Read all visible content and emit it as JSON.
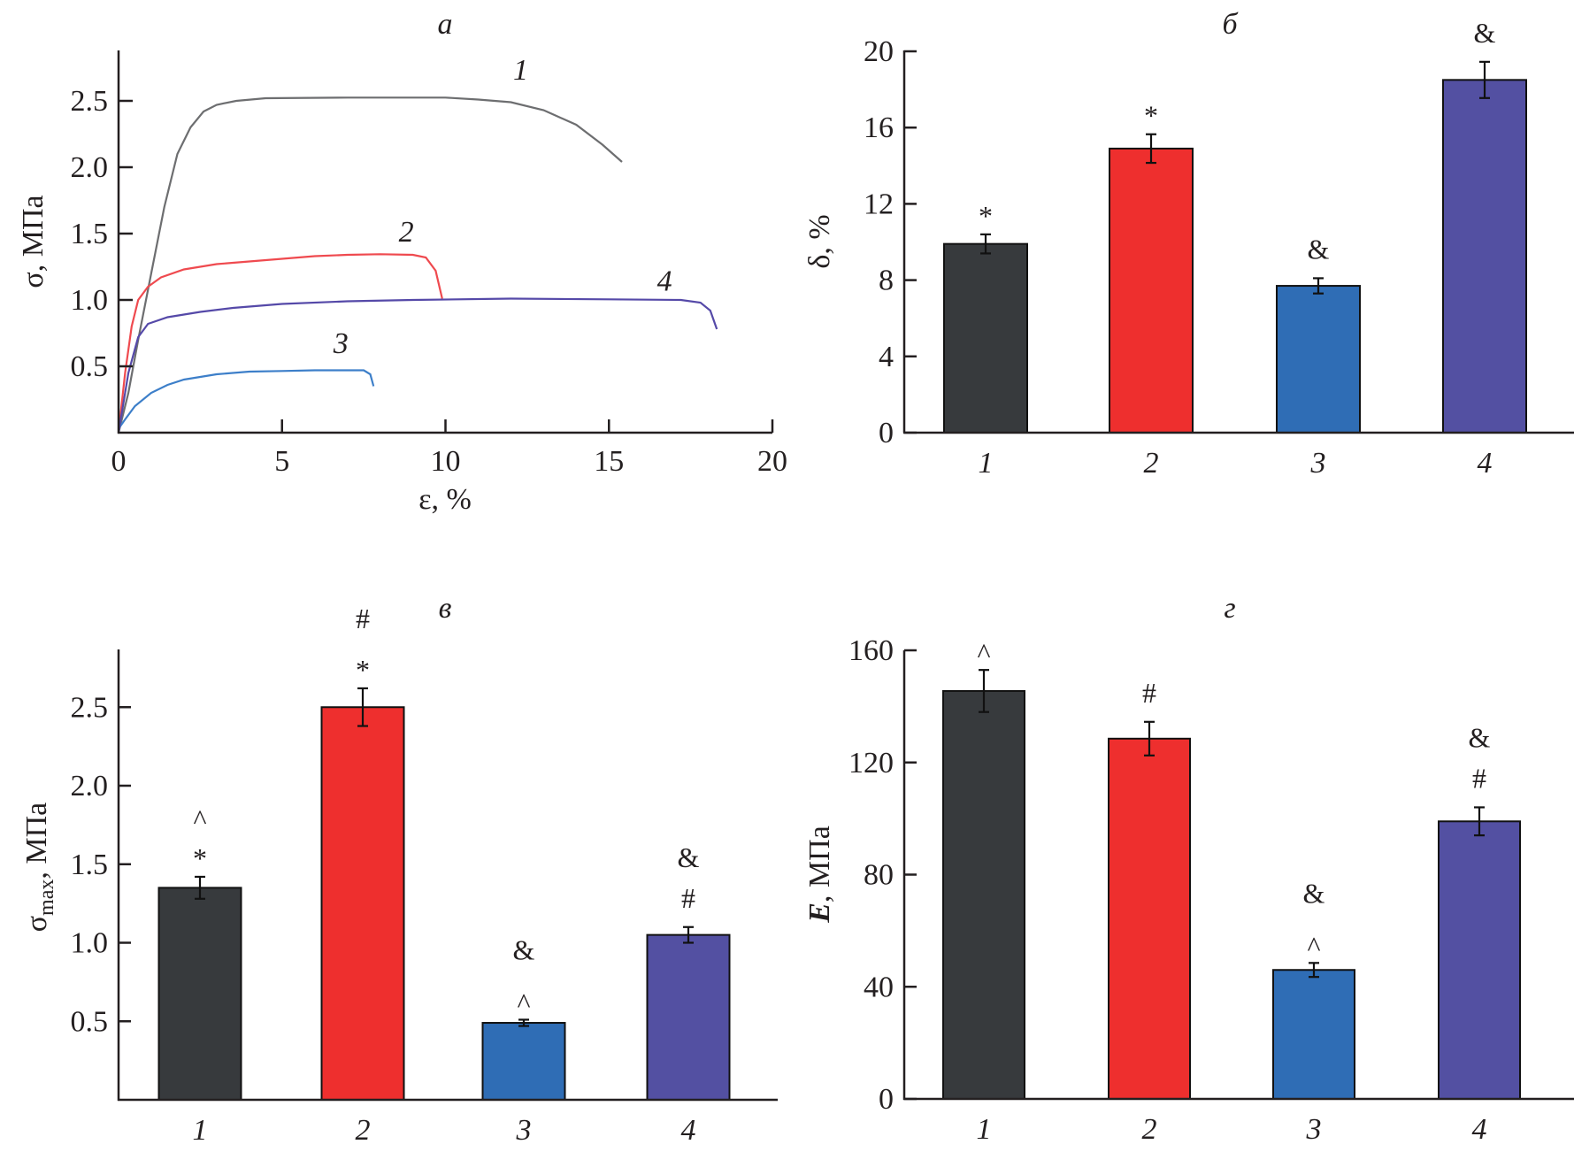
{
  "figure": {
    "panels": [
      "а",
      "б",
      "в",
      "г"
    ]
  },
  "chart_data": [
    {
      "id": "a",
      "type": "line",
      "panel_label": "а",
      "xlabel": "ε, %",
      "ylabel": "σ, МПа",
      "xlim": [
        0,
        20
      ],
      "ylim": [
        0,
        2.75
      ],
      "xticks": [
        0,
        5,
        10,
        15,
        20
      ],
      "xtick_labels": [
        "0",
        "5",
        "10",
        "15",
        "20"
      ],
      "yticks": [
        0.5,
        1.0,
        1.5,
        2.0,
        2.5
      ],
      "ytick_labels": [
        "0.5",
        "1.0",
        "1.5",
        "2.0",
        "2.5"
      ],
      "grid": false,
      "series": [
        {
          "name": "1",
          "color": "#6d6e70",
          "label_at": [
            12.3,
            2.66
          ],
          "points": [
            [
              0,
              0
            ],
            [
              0.3,
              0.3
            ],
            [
              0.6,
              0.7
            ],
            [
              1.0,
              1.2
            ],
            [
              1.4,
              1.7
            ],
            [
              1.8,
              2.1
            ],
            [
              2.2,
              2.3
            ],
            [
              2.6,
              2.42
            ],
            [
              3.0,
              2.47
            ],
            [
              3.6,
              2.5
            ],
            [
              4.5,
              2.52
            ],
            [
              7,
              2.525
            ],
            [
              10,
              2.525
            ],
            [
              11,
              2.51
            ],
            [
              12,
              2.49
            ],
            [
              13,
              2.43
            ],
            [
              14,
              2.32
            ],
            [
              14.8,
              2.17
            ],
            [
              15.4,
              2.04
            ]
          ]
        },
        {
          "name": "2",
          "color": "#ef4a4f",
          "label_at": [
            8.8,
            1.44
          ],
          "points": [
            [
              0,
              0
            ],
            [
              0.2,
              0.45
            ],
            [
              0.4,
              0.8
            ],
            [
              0.6,
              1.0
            ],
            [
              0.9,
              1.1
            ],
            [
              1.3,
              1.17
            ],
            [
              2,
              1.23
            ],
            [
              3,
              1.27
            ],
            [
              4,
              1.29
            ],
            [
              5,
              1.31
            ],
            [
              6,
              1.33
            ],
            [
              7,
              1.34
            ],
            [
              8,
              1.345
            ],
            [
              9,
              1.34
            ],
            [
              9.4,
              1.32
            ],
            [
              9.7,
              1.22
            ],
            [
              9.9,
              1.01
            ]
          ]
        },
        {
          "name": "3",
          "color": "#3d7fc9",
          "label_at": [
            6.8,
            0.6
          ],
          "points": [
            [
              0,
              0.03
            ],
            [
              0.2,
              0.1
            ],
            [
              0.5,
              0.2
            ],
            [
              1,
              0.3
            ],
            [
              1.5,
              0.36
            ],
            [
              2,
              0.4
            ],
            [
              3,
              0.44
            ],
            [
              4,
              0.46
            ],
            [
              5,
              0.465
            ],
            [
              6,
              0.47
            ],
            [
              7,
              0.47
            ],
            [
              7.5,
              0.47
            ],
            [
              7.7,
              0.44
            ],
            [
              7.8,
              0.35
            ]
          ]
        },
        {
          "name": "4",
          "color": "#5549a8",
          "label_at": [
            16.7,
            1.07
          ],
          "points": [
            [
              0,
              0
            ],
            [
              0.3,
              0.45
            ],
            [
              0.6,
              0.72
            ],
            [
              0.9,
              0.82
            ],
            [
              1.5,
              0.87
            ],
            [
              2.5,
              0.91
            ],
            [
              3.5,
              0.94
            ],
            [
              5,
              0.97
            ],
            [
              7,
              0.99
            ],
            [
              9,
              1.0
            ],
            [
              12,
              1.01
            ],
            [
              15,
              1.005
            ],
            [
              17.2,
              1.0
            ],
            [
              17.8,
              0.98
            ],
            [
              18.1,
              0.92
            ],
            [
              18.2,
              0.85
            ],
            [
              18.3,
              0.78
            ]
          ]
        }
      ]
    },
    {
      "id": "b",
      "type": "bar",
      "panel_label": "б",
      "ylabel": "δ, %",
      "categories": [
        "1",
        "2",
        "3",
        "4"
      ],
      "ylim": [
        0,
        20
      ],
      "yticks": [
        0,
        4,
        8,
        12,
        16,
        20
      ],
      "ytick_labels": [
        "0",
        "4",
        "8",
        "12",
        "16",
        "20"
      ],
      "values": [
        9.9,
        14.9,
        7.7,
        18.5
      ],
      "errors": [
        0.5,
        0.75,
        0.4,
        0.95
      ],
      "colors": [
        "#373a3d",
        "#ee2f2e",
        "#2f6db5",
        "#5350a2"
      ],
      "annotations": [
        [
          "*"
        ],
        [
          "*"
        ],
        [
          "&"
        ],
        [
          "&"
        ]
      ]
    },
    {
      "id": "v",
      "type": "bar",
      "panel_label": "в",
      "ylabel": "σmax, МПа",
      "ylabel_main": "σ",
      "ylabel_sub": "max",
      "ylabel_rest": ", МПа",
      "categories": [
        "1",
        "2",
        "3",
        "4"
      ],
      "ylim": [
        0,
        2.75
      ],
      "yticks": [
        0.5,
        1.0,
        1.5,
        2.0,
        2.5
      ],
      "ytick_labels": [
        "0.5",
        "1.0",
        "1.5",
        "2.0",
        "2.5"
      ],
      "values": [
        1.35,
        2.5,
        0.49,
        1.05
      ],
      "errors": [
        0.07,
        0.12,
        0.02,
        0.05
      ],
      "colors": [
        "#373a3d",
        "#ee2f2e",
        "#2f6db5",
        "#5350a2"
      ],
      "annotations": [
        [
          "*",
          "^"
        ],
        [
          "*",
          "#"
        ],
        [
          "^",
          "&"
        ],
        [
          "#",
          "&"
        ]
      ]
    },
    {
      "id": "g",
      "type": "bar",
      "panel_label": "г",
      "ylabel": "E, МПа",
      "ylabel_main": "E",
      "ylabel_rest": ", МПа",
      "categories": [
        "1",
        "2",
        "3",
        "4"
      ],
      "ylim": [
        0,
        160
      ],
      "yticks": [
        0,
        40,
        80,
        120,
        160
      ],
      "ytick_labels": [
        "0",
        "40",
        "80",
        "120",
        "160"
      ],
      "values": [
        145.5,
        128.5,
        46,
        99
      ],
      "errors": [
        7.5,
        6,
        2.5,
        5
      ],
      "colors": [
        "#373a3d",
        "#ee2f2e",
        "#2f6db5",
        "#5350a2"
      ],
      "annotations": [
        [
          "^"
        ],
        [
          "#"
        ],
        [
          "^",
          "&"
        ],
        [
          "#",
          "&"
        ]
      ]
    }
  ]
}
